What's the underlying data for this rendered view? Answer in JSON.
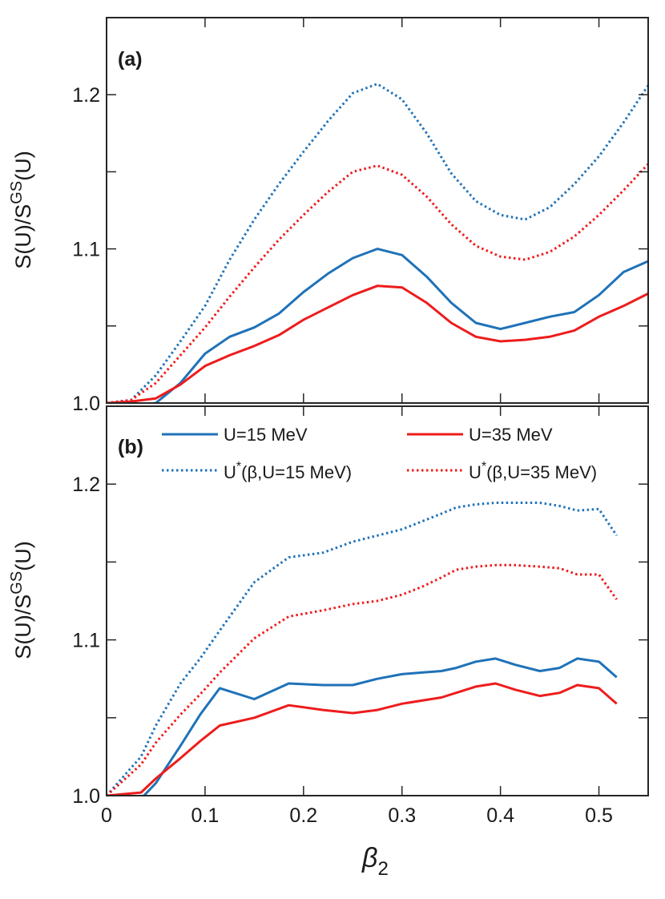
{
  "colors": {
    "blue": "#1f72b8",
    "red": "#ee1c1c",
    "axis": "#262626"
  },
  "chart_data": [
    {
      "type": "line",
      "panel_label": "(a)",
      "ylabel": {
        "main": "S(U)/S",
        "sup": "GS",
        "tail": "(U)"
      },
      "xlim": [
        0,
        0.55
      ],
      "ylim": [
        1.0,
        1.25
      ],
      "yticks": [
        1.0,
        1.05,
        1.1,
        1.15,
        1.2
      ],
      "ytick_labels": [
        "1.0",
        "",
        "1.1",
        "",
        "1.2"
      ],
      "series": [
        {
          "name": "U=15 MeV",
          "color": "blue",
          "style": "solid",
          "x": [
            0,
            0.025,
            0.05,
            0.075,
            0.1,
            0.125,
            0.15,
            0.175,
            0.2,
            0.225,
            0.25,
            0.275,
            0.3,
            0.325,
            0.35,
            0.375,
            0.4,
            0.425,
            0.45,
            0.475,
            0.5,
            0.525,
            0.55
          ],
          "y": [
            0.999,
            0.998,
            1.0,
            1.013,
            1.032,
            1.043,
            1.049,
            1.058,
            1.072,
            1.084,
            1.094,
            1.1,
            1.096,
            1.082,
            1.065,
            1.052,
            1.048,
            1.052,
            1.056,
            1.059,
            1.07,
            1.085,
            1.092
          ]
        },
        {
          "name": "U=35 MeV",
          "color": "red",
          "style": "solid",
          "x": [
            0,
            0.025,
            0.05,
            0.075,
            0.1,
            0.125,
            0.15,
            0.175,
            0.2,
            0.225,
            0.25,
            0.275,
            0.3,
            0.325,
            0.35,
            0.375,
            0.4,
            0.425,
            0.45,
            0.475,
            0.5,
            0.525,
            0.55
          ],
          "y": [
            1.0,
            1.001,
            1.003,
            1.012,
            1.024,
            1.031,
            1.037,
            1.044,
            1.054,
            1.062,
            1.07,
            1.076,
            1.075,
            1.065,
            1.052,
            1.043,
            1.04,
            1.041,
            1.043,
            1.047,
            1.056,
            1.063,
            1.071
          ]
        },
        {
          "name": "U*(β,U=15 MeV)",
          "color": "blue",
          "style": "dotted",
          "x": [
            0,
            0.025,
            0.05,
            0.075,
            0.1,
            0.125,
            0.15,
            0.175,
            0.2,
            0.225,
            0.25,
            0.275,
            0.3,
            0.325,
            0.35,
            0.375,
            0.4,
            0.425,
            0.45,
            0.475,
            0.5,
            0.525,
            0.55
          ],
          "y": [
            1.0,
            1.002,
            1.018,
            1.04,
            1.063,
            1.093,
            1.119,
            1.142,
            1.163,
            1.183,
            1.201,
            1.207,
            1.197,
            1.175,
            1.149,
            1.131,
            1.122,
            1.119,
            1.127,
            1.142,
            1.16,
            1.182,
            1.206
          ]
        },
        {
          "name": "U*(β,U=35 MeV)",
          "color": "red",
          "style": "dotted",
          "x": [
            0,
            0.025,
            0.05,
            0.075,
            0.1,
            0.125,
            0.15,
            0.175,
            0.2,
            0.225,
            0.25,
            0.275,
            0.3,
            0.325,
            0.35,
            0.375,
            0.4,
            0.425,
            0.45,
            0.475,
            0.5,
            0.525,
            0.55
          ],
          "y": [
            1.0,
            1.002,
            1.013,
            1.031,
            1.049,
            1.069,
            1.088,
            1.106,
            1.122,
            1.137,
            1.15,
            1.154,
            1.148,
            1.134,
            1.116,
            1.102,
            1.095,
            1.093,
            1.098,
            1.108,
            1.122,
            1.138,
            1.155
          ]
        }
      ]
    },
    {
      "type": "line",
      "panel_label": "(b)",
      "ylabel": {
        "main": "S(U)/S",
        "sup": "GS",
        "tail": "(U)"
      },
      "xlabel": {
        "main": "β",
        "sub": "2"
      },
      "xlim": [
        0,
        0.55
      ],
      "ylim": [
        1.0,
        1.25
      ],
      "xticks": [
        0,
        0.1,
        0.2,
        0.3,
        0.4,
        0.5
      ],
      "xtick_labels": [
        "0",
        "0.1",
        "0.2",
        "0.3",
        "0.4",
        "0.5"
      ],
      "yticks": [
        1.0,
        1.05,
        1.1,
        1.15,
        1.2
      ],
      "ytick_labels": [
        "1.0",
        "",
        "1.1",
        "",
        "1.2"
      ],
      "legend": {
        "placement": "top",
        "entries": [
          {
            "text": "U=15 MeV",
            "color": "blue",
            "style": "solid"
          },
          {
            "text": "U=35 MeV",
            "color": "red",
            "style": "solid"
          },
          {
            "pre": "U",
            "sup": "*",
            "post": "(β,U=15 MeV)",
            "color": "blue",
            "style": "dotted"
          },
          {
            "pre": "U",
            "sup": "*",
            "post": "(β,U=35 MeV)",
            "color": "red",
            "style": "dotted"
          }
        ]
      },
      "series": [
        {
          "name": "U=15 MeV",
          "color": "blue",
          "style": "solid",
          "x": [
            0,
            0.035,
            0.05,
            0.075,
            0.095,
            0.115,
            0.15,
            0.185,
            0.22,
            0.25,
            0.275,
            0.3,
            0.32,
            0.34,
            0.355,
            0.375,
            0.395,
            0.415,
            0.44,
            0.46,
            0.478,
            0.5,
            0.518
          ],
          "y": [
            1.0,
            0.998,
            1.008,
            1.032,
            1.052,
            1.069,
            1.062,
            1.072,
            1.071,
            1.071,
            1.075,
            1.078,
            1.079,
            1.08,
            1.082,
            1.086,
            1.088,
            1.084,
            1.08,
            1.082,
            1.088,
            1.086,
            1.076
          ]
        },
        {
          "name": "U=35 MeV",
          "color": "red",
          "style": "solid",
          "x": [
            0,
            0.035,
            0.05,
            0.075,
            0.095,
            0.115,
            0.15,
            0.185,
            0.22,
            0.25,
            0.275,
            0.3,
            0.32,
            0.34,
            0.355,
            0.375,
            0.395,
            0.415,
            0.44,
            0.46,
            0.478,
            0.5,
            0.518
          ],
          "y": [
            1.0,
            1.002,
            1.011,
            1.024,
            1.035,
            1.045,
            1.05,
            1.058,
            1.055,
            1.053,
            1.055,
            1.059,
            1.061,
            1.063,
            1.066,
            1.07,
            1.072,
            1.068,
            1.064,
            1.066,
            1.071,
            1.069,
            1.059
          ]
        },
        {
          "name": "U*(β,U=15 MeV)",
          "color": "blue",
          "style": "dotted",
          "x": [
            0,
            0.035,
            0.05,
            0.075,
            0.095,
            0.115,
            0.15,
            0.185,
            0.22,
            0.25,
            0.275,
            0.3,
            0.32,
            0.34,
            0.355,
            0.375,
            0.395,
            0.415,
            0.44,
            0.46,
            0.478,
            0.5,
            0.518
          ],
          "y": [
            1.0,
            1.025,
            1.045,
            1.072,
            1.088,
            1.106,
            1.137,
            1.153,
            1.156,
            1.163,
            1.167,
            1.171,
            1.176,
            1.181,
            1.185,
            1.187,
            1.188,
            1.188,
            1.188,
            1.186,
            1.183,
            1.184,
            1.167
          ]
        },
        {
          "name": "U*(β,U=35 MeV)",
          "color": "red",
          "style": "dotted",
          "x": [
            0,
            0.035,
            0.05,
            0.075,
            0.095,
            0.115,
            0.15,
            0.185,
            0.22,
            0.25,
            0.275,
            0.3,
            0.32,
            0.34,
            0.355,
            0.375,
            0.395,
            0.415,
            0.44,
            0.46,
            0.478,
            0.5,
            0.518
          ],
          "y": [
            1.0,
            1.02,
            1.034,
            1.052,
            1.065,
            1.079,
            1.101,
            1.115,
            1.119,
            1.123,
            1.125,
            1.129,
            1.134,
            1.14,
            1.145,
            1.147,
            1.148,
            1.148,
            1.147,
            1.146,
            1.142,
            1.142,
            1.126
          ]
        }
      ]
    }
  ]
}
